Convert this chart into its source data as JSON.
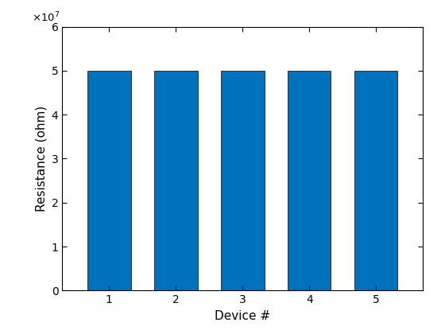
{
  "categories": [
    1,
    2,
    3,
    4,
    5
  ],
  "values": [
    50000000.0,
    50000000.0,
    50000000.0,
    50000000.0,
    50000000.0
  ],
  "bar_color": "#0072BD",
  "bar_edge_color": "#000000",
  "bar_edge_width": 0.5,
  "bar_width": 0.65,
  "xlabel": "Device #",
  "ylabel": "Resistance (ohm)",
  "ylim": [
    0,
    60000000.0
  ],
  "xlim": [
    0.3,
    5.7
  ],
  "yticks": [
    0,
    10000000.0,
    20000000.0,
    30000000.0,
    40000000.0,
    50000000.0,
    60000000.0
  ],
  "xticks": [
    1,
    2,
    3,
    4,
    5
  ],
  "background_color": "#ffffff",
  "tick_fontsize": 10,
  "label_fontsize": 11,
  "figsize": [
    5.6,
    4.2
  ],
  "dpi": 100
}
